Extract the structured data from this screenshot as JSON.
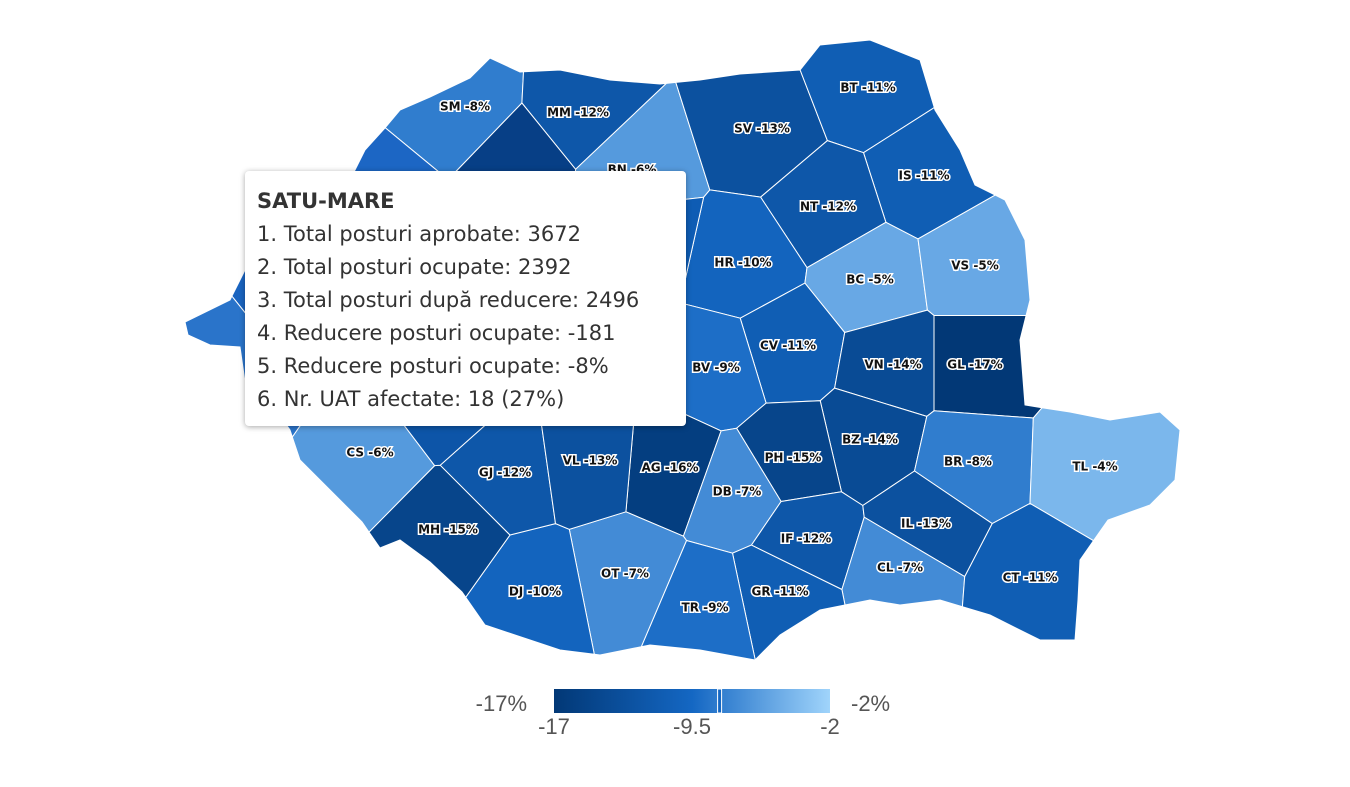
{
  "map": {
    "type": "choropleth",
    "regions": [
      {
        "label": "SM -8%",
        "value": -8
      },
      {
        "label": "MM -12%",
        "value": -12
      },
      {
        "label": "BN -6%",
        "value": -6
      },
      {
        "label": "SV -13%",
        "value": -13
      },
      {
        "label": "BT -11%",
        "value": -11
      },
      {
        "label": "IS -11%",
        "value": -11
      },
      {
        "label": "NT -12%",
        "value": -12
      },
      {
        "label": "HR -10%",
        "value": -10
      },
      {
        "label": "BC -5%",
        "value": -5
      },
      {
        "label": "VS -5%",
        "value": -5
      },
      {
        "label": "CV -11%",
        "value": -11
      },
      {
        "label": "BV -9%",
        "value": -9
      },
      {
        "label": "VN -14%",
        "value": -14
      },
      {
        "label": "GL -17%",
        "value": -17
      },
      {
        "label": "BZ -14%",
        "value": -14
      },
      {
        "label": "BR -8%",
        "value": -8
      },
      {
        "label": "TL -4%",
        "value": -4
      },
      {
        "label": "PH -15%",
        "value": -15
      },
      {
        "label": "AG -16%",
        "value": -16
      },
      {
        "label": "DB -7%",
        "value": -7
      },
      {
        "label": "IF -12%",
        "value": -12
      },
      {
        "label": "IL -13%",
        "value": -13
      },
      {
        "label": "CL -7%",
        "value": -7
      },
      {
        "label": "CT -11%",
        "value": -11
      },
      {
        "label": "GR -11%",
        "value": -11
      },
      {
        "label": "TR -9%",
        "value": -9
      },
      {
        "label": "OT -7%",
        "value": -7
      },
      {
        "label": "DJ -10%",
        "value": -10
      },
      {
        "label": "MH -15%",
        "value": -15
      },
      {
        "label": "GJ -12%",
        "value": -12
      },
      {
        "label": "VL -13%",
        "value": -13
      },
      {
        "label": "CS -6%",
        "value": -6
      }
    ],
    "legend": {
      "min_label": "-17%",
      "max_label": "-2%",
      "range": [
        -17,
        -2
      ],
      "ticks": [
        -17,
        -9.5,
        -2
      ],
      "colors": [
        "#023876",
        "#1467c3",
        "#a0d4fb"
      ]
    }
  },
  "tooltip": {
    "title": "SATU-MARE",
    "lines": [
      "1. Total posturi aprobate: 3672",
      "2. Total posturi ocupate: 2392",
      "3. Total posturi după reducere: 2496",
      "4. Reducere posturi ocupate: -181",
      "5. Reducere posturi ocupate: -8%",
      "6. Nr. UAT afectate: 18 (27%)"
    ]
  }
}
